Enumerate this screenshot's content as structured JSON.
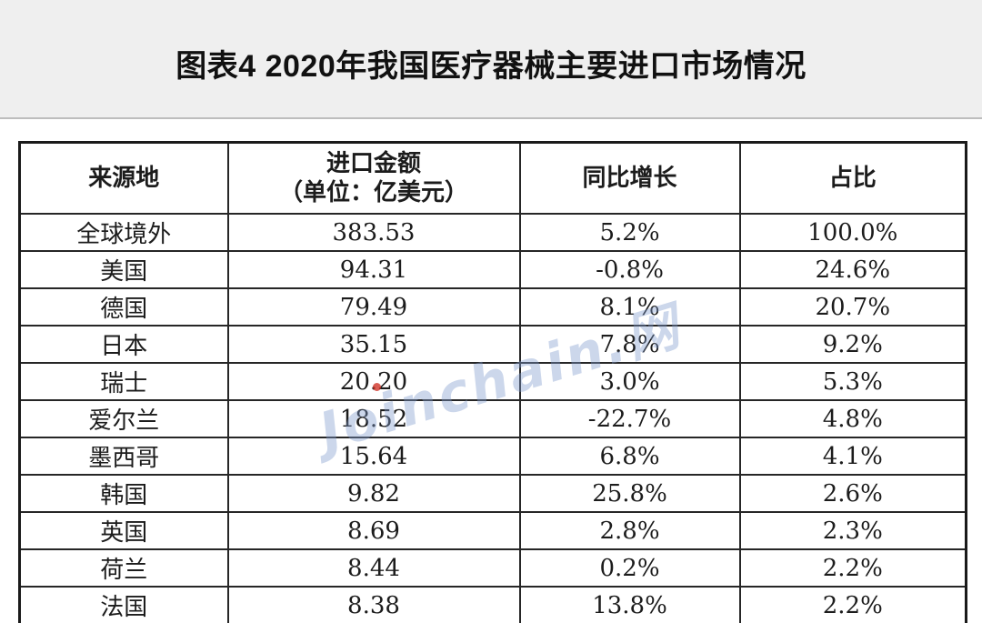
{
  "page": {
    "band_background": "#efefef",
    "card_background": "#ffffff",
    "border_color": "#1a1a1a",
    "text_color": "#1c1c1c",
    "watermark_color": "#809cce",
    "watermark_accent_color": "#cf3328"
  },
  "header": {
    "title": "图表4 2020年我国医疗器械主要进口市场情况"
  },
  "watermark": {
    "text": "Joinchain.网"
  },
  "table": {
    "header": {
      "source": "来源地",
      "amount_line1": "进口金额",
      "amount_line2": "（单位：亿美元）",
      "yoy": "同比增长",
      "share": "占比"
    },
    "rows": [
      [
        "全球境外",
        "383.53",
        "5.2%",
        "100.0%"
      ],
      [
        "美国",
        "94.31",
        "-0.8%",
        "24.6%"
      ],
      [
        "德国",
        "79.49",
        "8.1%",
        "20.7%"
      ],
      [
        "日本",
        "35.15",
        "7.8%",
        "9.2%"
      ],
      [
        "瑞士",
        "20.20",
        "3.0%",
        "5.3%"
      ],
      [
        "爱尔兰",
        "18.52",
        "-22.7%",
        "4.8%"
      ],
      [
        "墨西哥",
        "15.64",
        "6.8%",
        "4.1%"
      ],
      [
        "韩国",
        "9.82",
        "25.8%",
        "2.6%"
      ],
      [
        "英国",
        "8.69",
        "2.8%",
        "2.3%"
      ],
      [
        "荷兰",
        "8.44",
        "0.2%",
        "2.2%"
      ],
      [
        "法国",
        "8.38",
        "13.8%",
        "2.2%"
      ]
    ]
  },
  "chart_data": {
    "type": "table",
    "title": "图表4 2020年我国医疗器械主要进口市场情况",
    "columns": [
      "来源地",
      "进口金额（单位：亿美元）",
      "同比增长",
      "占比"
    ],
    "rows": [
      {
        "source": "全球境外",
        "import_amount_100m_usd": 383.53,
        "yoy_growth": "5.2%",
        "share": "100.0%"
      },
      {
        "source": "美国",
        "import_amount_100m_usd": 94.31,
        "yoy_growth": "-0.8%",
        "share": "24.6%"
      },
      {
        "source": "德国",
        "import_amount_100m_usd": 79.49,
        "yoy_growth": "8.1%",
        "share": "20.7%"
      },
      {
        "source": "日本",
        "import_amount_100m_usd": 35.15,
        "yoy_growth": "7.8%",
        "share": "9.2%"
      },
      {
        "source": "瑞士",
        "import_amount_100m_usd": 20.2,
        "yoy_growth": "3.0%",
        "share": "5.3%"
      },
      {
        "source": "爱尔兰",
        "import_amount_100m_usd": 18.52,
        "yoy_growth": "-22.7%",
        "share": "4.8%"
      },
      {
        "source": "墨西哥",
        "import_amount_100m_usd": 15.64,
        "yoy_growth": "6.8%",
        "share": "4.1%"
      },
      {
        "source": "韩国",
        "import_amount_100m_usd": 9.82,
        "yoy_growth": "25.8%",
        "share": "2.6%"
      },
      {
        "source": "英国",
        "import_amount_100m_usd": 8.69,
        "yoy_growth": "2.8%",
        "share": "2.3%"
      },
      {
        "source": "荷兰",
        "import_amount_100m_usd": 8.44,
        "yoy_growth": "0.2%",
        "share": "2.2%"
      },
      {
        "source": "法国",
        "import_amount_100m_usd": 8.38,
        "yoy_growth": "13.8%",
        "share": "2.2%"
      }
    ]
  }
}
